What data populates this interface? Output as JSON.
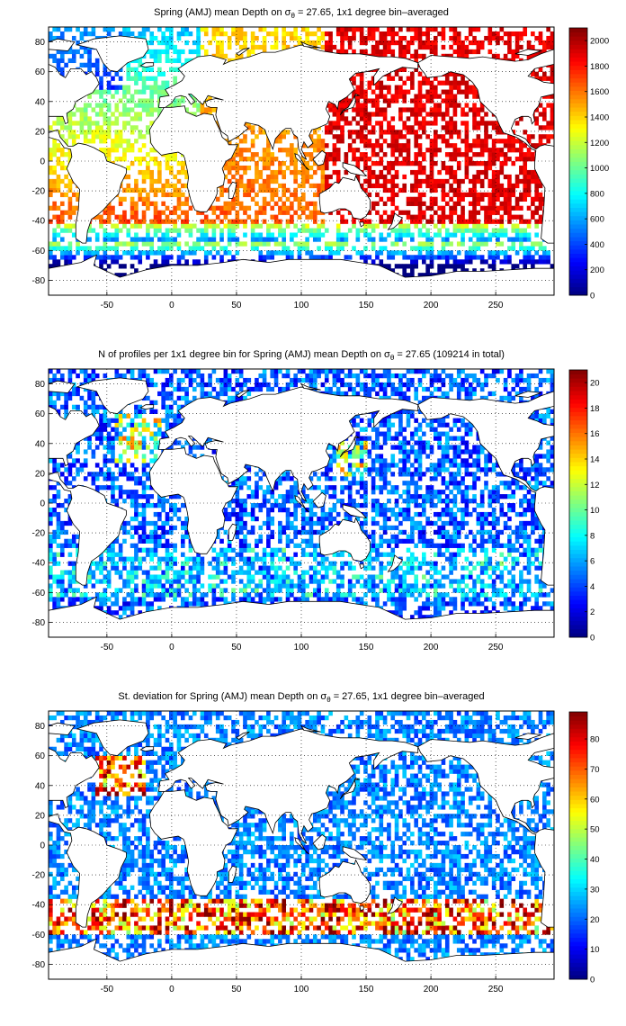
{
  "chart_data": [
    {
      "type": "heatmap",
      "title_prefix": "Spring (AMJ) mean Depth on ",
      "title_symbol": "σ",
      "title_subscript": "θ",
      "title_suffix": " = 27.65, 1x1 degree bin–averaged",
      "x_ticks": [
        -50,
        0,
        50,
        100,
        150,
        200,
        250
      ],
      "y_ticks": [
        80,
        60,
        40,
        20,
        0,
        -20,
        -40,
        -60,
        -80
      ],
      "xlim": [
        -95,
        295
      ],
      "ylim": [
        -90,
        90
      ],
      "grid": true,
      "colormap": "jet",
      "colorbar_ticks": [
        0,
        200,
        400,
        600,
        800,
        1000,
        1200,
        1400,
        1600,
        1800,
        2000
      ],
      "clim": [
        0,
        2100
      ]
    },
    {
      "type": "heatmap",
      "title_prefix": "N of profiles per 1x1 degree bin for Spring (AMJ) mean Depth on ",
      "title_symbol": "σ",
      "title_subscript": "θ",
      "title_suffix": " = 27.65 (109214 in total)",
      "x_ticks": [
        -50,
        0,
        50,
        100,
        150,
        200,
        250
      ],
      "y_ticks": [
        80,
        60,
        40,
        20,
        0,
        -20,
        -40,
        -60,
        -80
      ],
      "xlim": [
        -95,
        295
      ],
      "ylim": [
        -90,
        90
      ],
      "grid": true,
      "colormap": "jet",
      "colorbar_ticks": [
        0,
        2,
        4,
        6,
        8,
        10,
        12,
        14,
        16,
        18,
        20
      ],
      "clim": [
        0,
        21
      ]
    },
    {
      "type": "heatmap",
      "title_prefix": "St. deviation for Spring (AMJ) mean Depth on ",
      "title_symbol": "σ",
      "title_subscript": "θ",
      "title_suffix": " = 27.65, 1x1 degree bin–averaged",
      "x_ticks": [
        -50,
        0,
        50,
        100,
        150,
        200,
        250
      ],
      "y_ticks": [
        80,
        60,
        40,
        20,
        0,
        -20,
        -40,
        -60,
        -80
      ],
      "xlim": [
        -95,
        295
      ],
      "ylim": [
        -90,
        90
      ],
      "grid": true,
      "colormap": "jet",
      "colorbar_ticks": [
        0,
        10,
        20,
        30,
        40,
        50,
        60,
        70,
        80
      ],
      "clim": [
        0,
        89
      ]
    }
  ]
}
